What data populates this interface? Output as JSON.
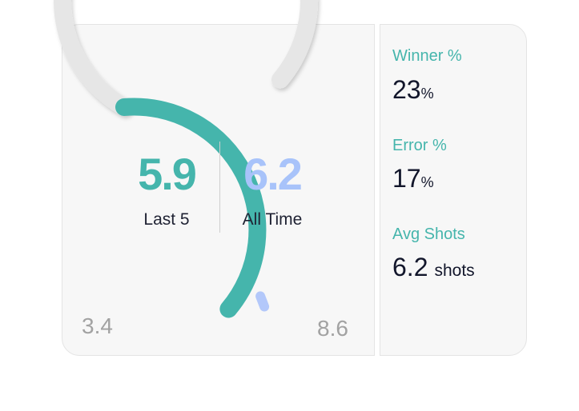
{
  "gauge": {
    "min": 3.4,
    "max": 8.6,
    "min_label": "3.4",
    "max_label": "8.6",
    "last5": {
      "value": 5.9,
      "value_text": "5.9",
      "label": "Last 5"
    },
    "all_time": {
      "value": 6.2,
      "value_text": "6.2",
      "label": "All Time"
    },
    "colors": {
      "last5": "#45b5ac",
      "all_time": "#b3c8fa",
      "track": "#e6e6e6",
      "label": "#45b5ac"
    }
  },
  "stats": {
    "winner": {
      "title": "Winner %",
      "value": "23",
      "unit": "%"
    },
    "error": {
      "title": "Error %",
      "value": "17",
      "unit": "%"
    },
    "avg_shots": {
      "title": "Avg Shots",
      "value": "6.2",
      "unit": "shots"
    }
  }
}
